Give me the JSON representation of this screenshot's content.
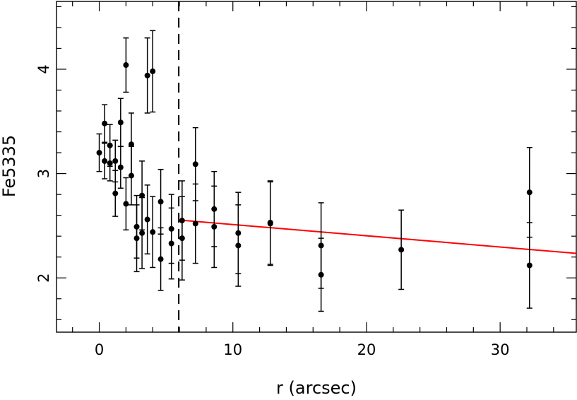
{
  "chart_data": {
    "type": "scatter",
    "xlabel": "r (arcsec)",
    "ylabel": "Fe5335",
    "xlim": [
      -3.2,
      35.7
    ],
    "ylim": [
      1.48,
      4.65
    ],
    "xticks": [
      {
        "v": 0,
        "label": "0"
      },
      {
        "v": 10,
        "label": "10"
      },
      {
        "v": 20,
        "label": "20"
      },
      {
        "v": 30,
        "label": "30"
      }
    ],
    "yticks": [
      {
        "v": 2,
        "label": "2"
      },
      {
        "v": 3,
        "label": "3"
      },
      {
        "v": 4,
        "label": "4"
      }
    ],
    "x_minor_step": 2,
    "y_minor_step": 0.2,
    "grid": false,
    "vline": {
      "x": 5.95,
      "style": "dashed",
      "color": "#000000"
    },
    "fit_line": {
      "x": [
        5.95,
        35.7
      ],
      "y": [
        2.555,
        2.235
      ],
      "color": "#ff0000"
    },
    "points": [
      {
        "x": 0.0,
        "y": 3.2,
        "err": 0.18
      },
      {
        "x": 0.4,
        "y": 3.48,
        "err": 0.18
      },
      {
        "x": 0.4,
        "y": 3.12,
        "err": 0.17
      },
      {
        "x": 0.8,
        "y": 3.27,
        "err": 0.2
      },
      {
        "x": 0.8,
        "y": 3.1,
        "err": 0.17
      },
      {
        "x": 1.2,
        "y": 3.12,
        "err": 0.2
      },
      {
        "x": 1.2,
        "y": 2.81,
        "err": 0.22
      },
      {
        "x": 1.6,
        "y": 3.49,
        "err": 0.23
      },
      {
        "x": 1.6,
        "y": 3.06,
        "err": 0.2
      },
      {
        "x": 2.0,
        "y": 4.04,
        "err": 0.26
      },
      {
        "x": 2.0,
        "y": 2.71,
        "err": 0.25
      },
      {
        "x": 2.4,
        "y": 3.28,
        "err": 0.3
      },
      {
        "x": 2.4,
        "y": 2.98,
        "err": 0.28
      },
      {
        "x": 2.8,
        "y": 2.49,
        "err": 0.3
      },
      {
        "x": 2.8,
        "y": 2.38,
        "err": 0.32
      },
      {
        "x": 3.2,
        "y": 2.79,
        "err": 0.33
      },
      {
        "x": 3.2,
        "y": 2.43,
        "err": 0.34
      },
      {
        "x": 3.6,
        "y": 3.94,
        "err": 0.36
      },
      {
        "x": 3.6,
        "y": 2.56,
        "err": 0.33
      },
      {
        "x": 4.0,
        "y": 3.98,
        "err": 0.39
      },
      {
        "x": 4.0,
        "y": 2.44,
        "err": 0.34
      },
      {
        "x": 4.6,
        "y": 2.73,
        "err": 0.31
      },
      {
        "x": 4.6,
        "y": 2.18,
        "err": 0.3
      },
      {
        "x": 5.4,
        "y": 2.47,
        "err": 0.33
      },
      {
        "x": 5.4,
        "y": 2.33,
        "err": 0.34
      },
      {
        "x": 6.2,
        "y": 2.55,
        "err": 0.38
      },
      {
        "x": 6.2,
        "y": 2.38,
        "err": 0.4
      },
      {
        "x": 7.2,
        "y": 3.09,
        "err": 0.35
      },
      {
        "x": 7.2,
        "y": 2.52,
        "err": 0.38
      },
      {
        "x": 8.6,
        "y": 2.66,
        "err": 0.36
      },
      {
        "x": 8.6,
        "y": 2.49,
        "err": 0.39
      },
      {
        "x": 10.4,
        "y": 2.43,
        "err": 0.39
      },
      {
        "x": 10.4,
        "y": 2.31,
        "err": 0.39
      },
      {
        "x": 12.8,
        "y": 2.53,
        "err": 0.4
      },
      {
        "x": 12.8,
        "y": 2.52,
        "err": 0.4
      },
      {
        "x": 16.6,
        "y": 2.31,
        "err": 0.41
      },
      {
        "x": 16.6,
        "y": 2.03,
        "err": 0.35
      },
      {
        "x": 22.6,
        "y": 2.27,
        "err": 0.38
      },
      {
        "x": 32.2,
        "y": 2.82,
        "err": 0.43
      },
      {
        "x": 32.2,
        "y": 2.12,
        "err": 0.41
      }
    ]
  }
}
